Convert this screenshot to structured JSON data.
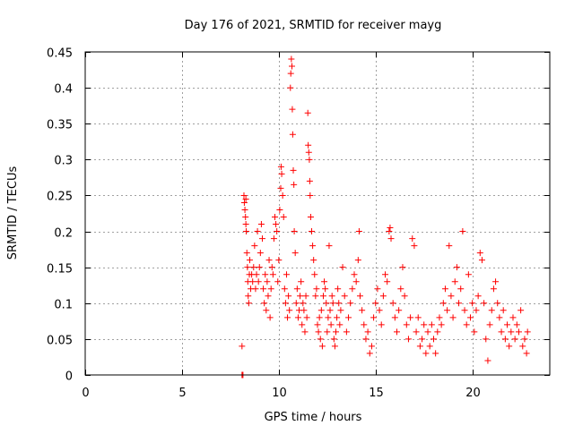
{
  "chart_data": {
    "type": "scatter",
    "title": "Day 176 of 2021, SRMTID for receiver mayg",
    "xlabel": "GPS time / hours",
    "ylabel": "SRMTID / TECUs",
    "xlim": [
      0,
      24
    ],
    "ylim": [
      0,
      0.45
    ],
    "xticks": [
      0,
      5,
      10,
      15,
      20
    ],
    "yticks": [
      0,
      0.05,
      0.1,
      0.15,
      0.2,
      0.25,
      0.3,
      0.35,
      0.4,
      0.45
    ],
    "xtick_labels": [
      "0",
      "5",
      "10",
      "15",
      "20"
    ],
    "ytick_labels": [
      "0",
      "0.05",
      "0.1",
      "0.15",
      "0.2",
      "0.25",
      "0.3",
      "0.35",
      "0.4",
      "0.45"
    ],
    "grid": true,
    "marker": "+",
    "series": [
      {
        "name": "SRMTID",
        "color": "#ff0000",
        "points": [
          [
            8.1,
            0.0
          ],
          [
            8.12,
            0.0
          ],
          [
            8.15,
            0.0
          ],
          [
            8.1,
            0.04
          ],
          [
            8.2,
            0.25
          ],
          [
            8.22,
            0.24
          ],
          [
            8.25,
            0.23
          ],
          [
            8.28,
            0.22
          ],
          [
            8.3,
            0.21
          ],
          [
            8.32,
            0.2
          ],
          [
            8.3,
            0.245
          ],
          [
            8.35,
            0.17
          ],
          [
            8.38,
            0.15
          ],
          [
            8.4,
            0.13
          ],
          [
            8.42,
            0.11
          ],
          [
            8.45,
            0.1
          ],
          [
            8.48,
            0.14
          ],
          [
            8.5,
            0.16
          ],
          [
            8.55,
            0.12
          ],
          [
            8.6,
            0.14
          ],
          [
            8.65,
            0.13
          ],
          [
            8.7,
            0.15
          ],
          [
            8.75,
            0.18
          ],
          [
            8.8,
            0.12
          ],
          [
            8.85,
            0.14
          ],
          [
            8.9,
            0.2
          ],
          [
            8.95,
            0.13
          ],
          [
            9.0,
            0.15
          ],
          [
            9.05,
            0.17
          ],
          [
            9.1,
            0.21
          ],
          [
            9.15,
            0.19
          ],
          [
            9.2,
            0.12
          ],
          [
            9.25,
            0.1
          ],
          [
            9.3,
            0.14
          ],
          [
            9.35,
            0.09
          ],
          [
            9.4,
            0.13
          ],
          [
            9.45,
            0.11
          ],
          [
            9.5,
            0.16
          ],
          [
            9.55,
            0.08
          ],
          [
            9.6,
            0.12
          ],
          [
            9.65,
            0.15
          ],
          [
            9.7,
            0.14
          ],
          [
            9.75,
            0.19
          ],
          [
            9.8,
            0.22
          ],
          [
            9.85,
            0.21
          ],
          [
            9.9,
            0.2
          ],
          [
            9.95,
            0.13
          ],
          [
            10.0,
            0.16
          ],
          [
            10.05,
            0.23
          ],
          [
            10.1,
            0.26
          ],
          [
            10.12,
            0.29
          ],
          [
            10.15,
            0.28
          ],
          [
            10.2,
            0.25
          ],
          [
            10.25,
            0.22
          ],
          [
            10.3,
            0.12
          ],
          [
            10.35,
            0.1
          ],
          [
            10.4,
            0.14
          ],
          [
            10.45,
            0.08
          ],
          [
            10.5,
            0.11
          ],
          [
            10.55,
            0.09
          ],
          [
            10.6,
            0.4
          ],
          [
            10.62,
            0.42
          ],
          [
            10.65,
            0.44
          ],
          [
            10.68,
            0.43
          ],
          [
            10.7,
            0.37
          ],
          [
            10.72,
            0.335
          ],
          [
            10.75,
            0.285
          ],
          [
            10.78,
            0.265
          ],
          [
            10.8,
            0.2
          ],
          [
            10.85,
            0.17
          ],
          [
            10.9,
            0.1
          ],
          [
            10.95,
            0.12
          ],
          [
            11.0,
            0.08
          ],
          [
            11.05,
            0.09
          ],
          [
            11.1,
            0.11
          ],
          [
            11.15,
            0.13
          ],
          [
            11.2,
            0.07
          ],
          [
            11.25,
            0.1
          ],
          [
            11.3,
            0.09
          ],
          [
            11.35,
            0.06
          ],
          [
            11.4,
            0.11
          ],
          [
            11.45,
            0.08
          ],
          [
            11.5,
            0.365
          ],
          [
            11.52,
            0.32
          ],
          [
            11.55,
            0.31
          ],
          [
            11.58,
            0.3
          ],
          [
            11.6,
            0.27
          ],
          [
            11.62,
            0.25
          ],
          [
            11.65,
            0.22
          ],
          [
            11.7,
            0.2
          ],
          [
            11.75,
            0.18
          ],
          [
            11.8,
            0.16
          ],
          [
            11.85,
            0.14
          ],
          [
            11.9,
            0.11
          ],
          [
            11.95,
            0.12
          ],
          [
            12.0,
            0.07
          ],
          [
            12.05,
            0.06
          ],
          [
            12.1,
            0.08
          ],
          [
            12.15,
            0.05
          ],
          [
            12.2,
            0.09
          ],
          [
            12.25,
            0.04
          ],
          [
            12.3,
            0.11
          ],
          [
            12.35,
            0.13
          ],
          [
            12.4,
            0.12
          ],
          [
            12.45,
            0.1
          ],
          [
            12.5,
            0.06
          ],
          [
            12.55,
            0.08
          ],
          [
            12.6,
            0.18
          ],
          [
            12.65,
            0.09
          ],
          [
            12.7,
            0.07
          ],
          [
            12.75,
            0.11
          ],
          [
            12.8,
            0.1
          ],
          [
            12.85,
            0.05
          ],
          [
            12.9,
            0.04
          ],
          [
            12.95,
            0.06
          ],
          [
            13.0,
            0.08
          ],
          [
            13.05,
            0.12
          ],
          [
            13.1,
            0.1
          ],
          [
            13.15,
            0.07
          ],
          [
            13.2,
            0.09
          ],
          [
            13.3,
            0.15
          ],
          [
            13.4,
            0.11
          ],
          [
            13.5,
            0.06
          ],
          [
            13.6,
            0.08
          ],
          [
            13.7,
            0.1
          ],
          [
            13.8,
            0.12
          ],
          [
            13.9,
            0.14
          ],
          [
            14.0,
            0.13
          ],
          [
            14.1,
            0.16
          ],
          [
            14.15,
            0.2
          ],
          [
            14.2,
            0.11
          ],
          [
            14.3,
            0.09
          ],
          [
            14.4,
            0.07
          ],
          [
            14.5,
            0.05
          ],
          [
            14.6,
            0.06
          ],
          [
            14.7,
            0.03
          ],
          [
            14.8,
            0.04
          ],
          [
            14.9,
            0.08
          ],
          [
            15.0,
            0.1
          ],
          [
            15.1,
            0.12
          ],
          [
            15.2,
            0.09
          ],
          [
            15.3,
            0.07
          ],
          [
            15.4,
            0.11
          ],
          [
            15.5,
            0.14
          ],
          [
            15.6,
            0.13
          ],
          [
            15.7,
            0.2
          ],
          [
            15.75,
            0.205
          ],
          [
            15.8,
            0.19
          ],
          [
            15.9,
            0.1
          ],
          [
            16.0,
            0.08
          ],
          [
            16.1,
            0.06
          ],
          [
            16.2,
            0.09
          ],
          [
            16.3,
            0.12
          ],
          [
            16.4,
            0.15
          ],
          [
            16.5,
            0.11
          ],
          [
            16.6,
            0.07
          ],
          [
            16.7,
            0.05
          ],
          [
            16.8,
            0.08
          ],
          [
            16.9,
            0.19
          ],
          [
            17.0,
            0.18
          ],
          [
            17.1,
            0.06
          ],
          [
            17.2,
            0.08
          ],
          [
            17.3,
            0.04
          ],
          [
            17.4,
            0.05
          ],
          [
            17.5,
            0.07
          ],
          [
            17.6,
            0.03
          ],
          [
            17.7,
            0.06
          ],
          [
            17.8,
            0.04
          ],
          [
            17.9,
            0.07
          ],
          [
            18.0,
            0.05
          ],
          [
            18.1,
            0.03
          ],
          [
            18.2,
            0.06
          ],
          [
            18.3,
            0.08
          ],
          [
            18.4,
            0.07
          ],
          [
            18.5,
            0.1
          ],
          [
            18.6,
            0.12
          ],
          [
            18.7,
            0.09
          ],
          [
            18.8,
            0.18
          ],
          [
            18.9,
            0.11
          ],
          [
            19.0,
            0.08
          ],
          [
            19.1,
            0.13
          ],
          [
            19.2,
            0.15
          ],
          [
            19.3,
            0.1
          ],
          [
            19.4,
            0.12
          ],
          [
            19.5,
            0.2
          ],
          [
            19.6,
            0.09
          ],
          [
            19.7,
            0.07
          ],
          [
            19.8,
            0.14
          ],
          [
            19.9,
            0.08
          ],
          [
            20.0,
            0.1
          ],
          [
            20.1,
            0.06
          ],
          [
            20.2,
            0.09
          ],
          [
            20.3,
            0.11
          ],
          [
            20.4,
            0.17
          ],
          [
            20.5,
            0.16
          ],
          [
            20.6,
            0.1
          ],
          [
            20.7,
            0.05
          ],
          [
            20.8,
            0.02
          ],
          [
            20.9,
            0.07
          ],
          [
            21.0,
            0.09
          ],
          [
            21.1,
            0.12
          ],
          [
            21.2,
            0.13
          ],
          [
            21.3,
            0.1
          ],
          [
            21.4,
            0.08
          ],
          [
            21.5,
            0.06
          ],
          [
            21.6,
            0.09
          ],
          [
            21.7,
            0.05
          ],
          [
            21.8,
            0.07
          ],
          [
            21.9,
            0.04
          ],
          [
            22.0,
            0.06
          ],
          [
            22.1,
            0.08
          ],
          [
            22.2,
            0.05
          ],
          [
            22.3,
            0.07
          ],
          [
            22.4,
            0.06
          ],
          [
            22.5,
            0.09
          ],
          [
            22.6,
            0.04
          ],
          [
            22.7,
            0.05
          ],
          [
            22.8,
            0.03
          ],
          [
            22.85,
            0.06
          ]
        ]
      }
    ]
  }
}
